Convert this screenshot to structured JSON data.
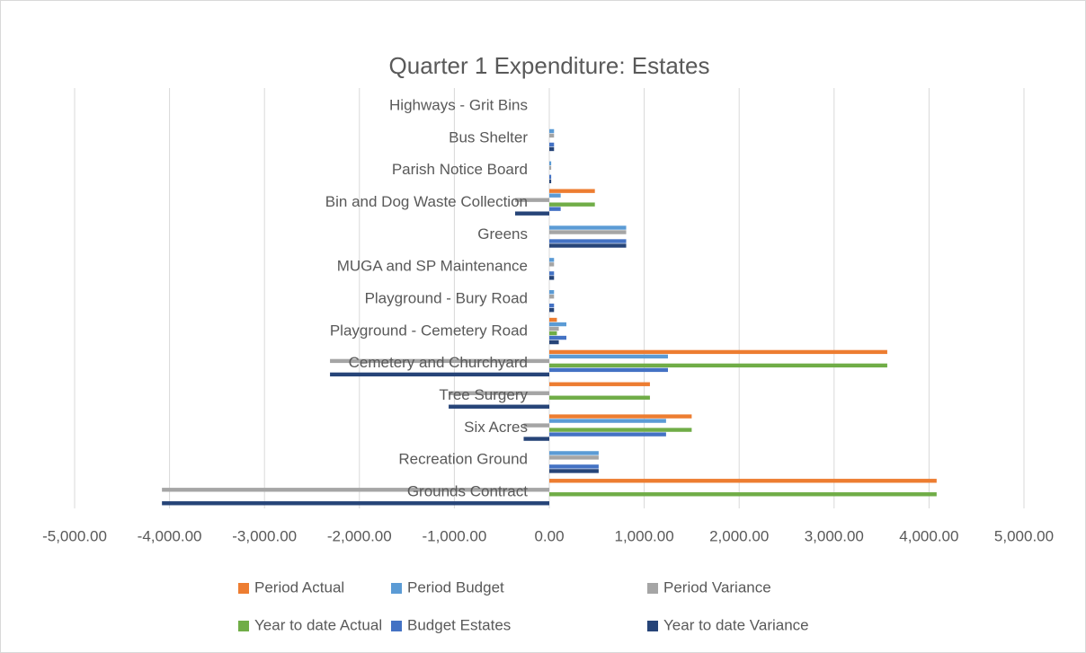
{
  "chart_data": {
    "type": "hbar",
    "title": "Quarter 1 Expenditure: Estates",
    "categories": [
      "Grounds Contract",
      "Recreation Ground",
      "Six Acres",
      "Tree Surgery",
      "Cemetery and Churchyard",
      "Playground - Cemetery Road",
      "Playground - Bury Road",
      "MUGA and SP Maintenance",
      "Greens",
      "Bin and Dog Waste Collection",
      "Parish Notice Board",
      "Bus Shelter",
      "Highways - Grit Bins"
    ],
    "series": [
      {
        "name": "Period Actual",
        "color": "#ED7D31",
        "values": [
          4080,
          0,
          1500,
          1060,
          3560,
          80,
          0,
          0,
          0,
          480,
          0,
          0,
          0
        ]
      },
      {
        "name": "Period Budget",
        "color": "#5B9BD5",
        "values": [
          0,
          520,
          1230,
          0,
          1250,
          180,
          50,
          50,
          810,
          120,
          20,
          50,
          0
        ]
      },
      {
        "name": "Period Variance",
        "color": "#A5A5A5",
        "values": [
          -4080,
          520,
          -270,
          -1060,
          -2310,
          100,
          50,
          50,
          810,
          -360,
          20,
          50,
          0
        ]
      },
      {
        "name": "Year to date Actual",
        "color": "#70AD47",
        "values": [
          4080,
          0,
          1500,
          1060,
          3560,
          80,
          0,
          0,
          0,
          480,
          0,
          0,
          0
        ]
      },
      {
        "name": "Budget Estates",
        "color": "#4472C4",
        "values": [
          0,
          520,
          1230,
          0,
          1250,
          180,
          50,
          50,
          810,
          120,
          20,
          50,
          0
        ]
      },
      {
        "name": "Year to date Variance",
        "color": "#264478",
        "values": [
          -4080,
          520,
          -270,
          -1060,
          -2310,
          100,
          50,
          50,
          810,
          -360,
          20,
          50,
          0
        ]
      }
    ],
    "xlim": [
      -5000,
      5000
    ],
    "xticks": [
      {
        "value": -5000,
        "label": "-5,000.00"
      },
      {
        "value": -4000,
        "label": "-4,000.00"
      },
      {
        "value": -3000,
        "label": "-3,000.00"
      },
      {
        "value": -2000,
        "label": "-2,000.00"
      },
      {
        "value": -1000,
        "label": "-1,000.00"
      },
      {
        "value": 0,
        "label": "0.00"
      },
      {
        "value": 1000,
        "label": "1,000.00"
      },
      {
        "value": 2000,
        "label": "2,000.00"
      },
      {
        "value": 3000,
        "label": "3,000.00"
      },
      {
        "value": 4000,
        "label": "4,000.00"
      },
      {
        "value": 5000,
        "label": "5,000.00"
      }
    ],
    "grid": true,
    "legend": "bottom"
  }
}
